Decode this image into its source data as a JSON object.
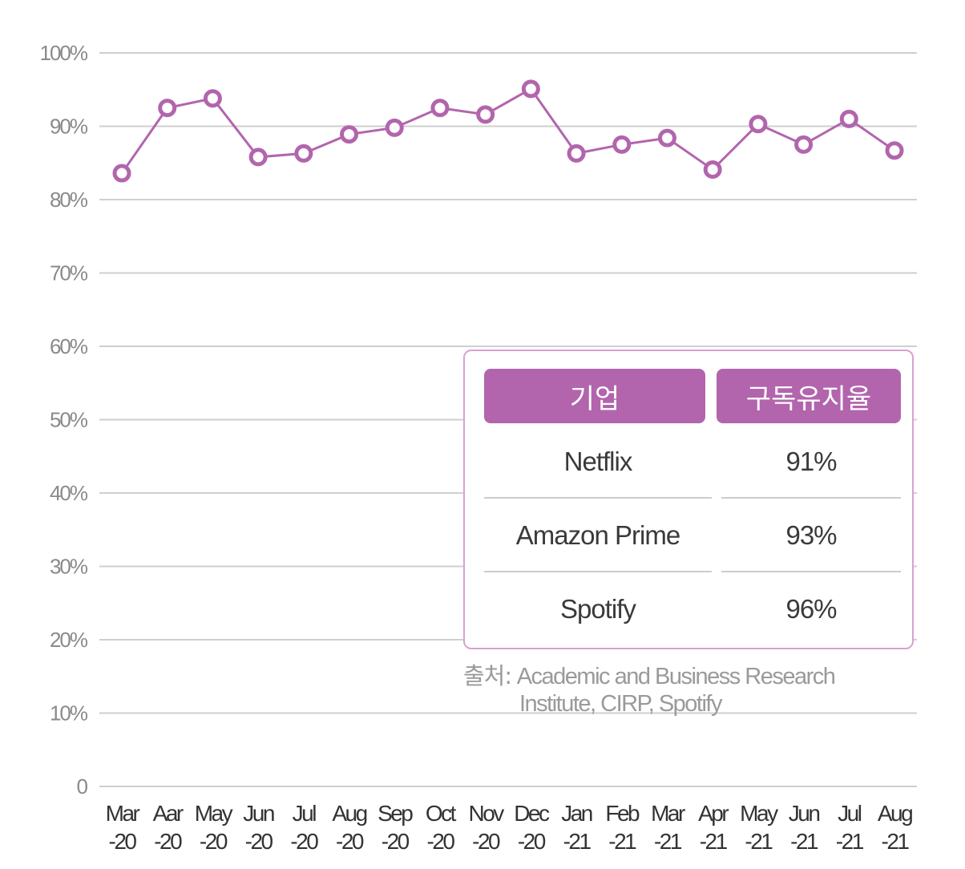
{
  "chart_data": {
    "type": "line",
    "title": "",
    "xlabel": "",
    "ylabel": "",
    "ylim": [
      0,
      100
    ],
    "y_ticks": [
      "0",
      "10%",
      "20%",
      "30%",
      "40%",
      "50%",
      "60%",
      "70%",
      "80%",
      "90%",
      "100%"
    ],
    "y_tick_values": [
      0,
      10,
      20,
      30,
      40,
      50,
      60,
      70,
      80,
      90,
      100
    ],
    "categories": [
      {
        "month": "Mar",
        "year": "-20"
      },
      {
        "month": "Aar",
        "year": "-20"
      },
      {
        "month": "May",
        "year": "-20"
      },
      {
        "month": "Jun",
        "year": "-20"
      },
      {
        "month": "Jul",
        "year": "-20"
      },
      {
        "month": "Aug",
        "year": "-20"
      },
      {
        "month": "Sep",
        "year": "-20"
      },
      {
        "month": "Oct",
        "year": "-20"
      },
      {
        "month": "Nov",
        "year": "-20"
      },
      {
        "month": "Dec",
        "year": "-20"
      },
      {
        "month": "Jan",
        "year": "-21"
      },
      {
        "month": "Feb",
        "year": "-21"
      },
      {
        "month": "Mar",
        "year": "-21"
      },
      {
        "month": "Apr",
        "year": "-21"
      },
      {
        "month": "May",
        "year": "-21"
      },
      {
        "month": "Jun",
        "year": "-21"
      },
      {
        "month": "Jul",
        "year": "-21"
      },
      {
        "month": "Aug",
        "year": "-21"
      }
    ],
    "series": [
      {
        "name": "구독유지율",
        "color": "#b265ad",
        "values": [
          83.6,
          92.5,
          93.8,
          85.8,
          86.3,
          88.9,
          89.8,
          92.5,
          91.6,
          95.1,
          86.3,
          87.5,
          88.4,
          84.1,
          90.3,
          87.5,
          91.0,
          86.7
        ]
      }
    ],
    "grid": true
  },
  "table": {
    "headers": {
      "company": "기업",
      "rate": "구독유지율"
    },
    "rows": [
      {
        "company": "Netflix",
        "rate": "91%"
      },
      {
        "company": "Amazon Prime",
        "rate": "93%"
      },
      {
        "company": "Spotify",
        "rate": "96%"
      }
    ]
  },
  "source": {
    "label": "출처:",
    "line1": "Academic and Business Research",
    "line2": "Institute, CIRP, Spotify"
  },
  "colors": {
    "accent": "#b265ad",
    "border": "#d9a0d2",
    "grid": "#cfcfcf"
  }
}
